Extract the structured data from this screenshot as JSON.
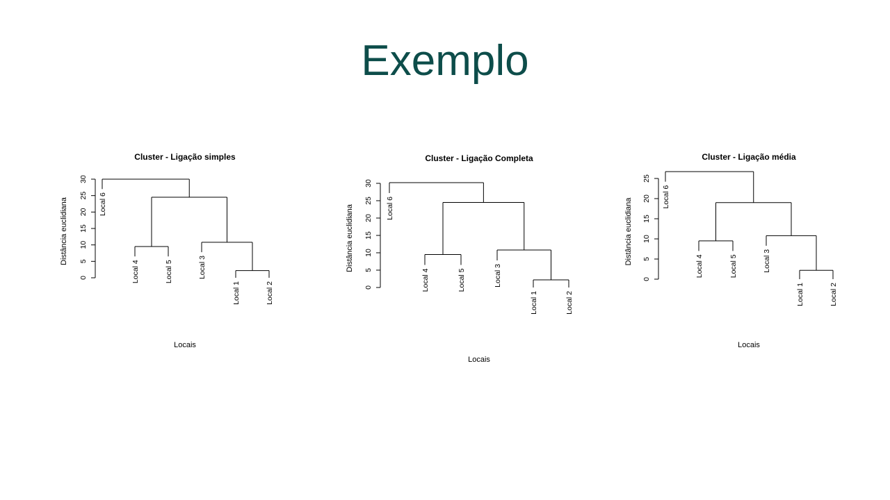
{
  "slide": {
    "title": "Exemplo"
  },
  "chart_data": [
    {
      "type": "dendrogram",
      "title": "Cluster - Ligação simples",
      "xlabel": "Locais",
      "ylabel": "Distância euclidiana",
      "ylim": [
        0,
        30
      ],
      "yticks": [
        0,
        5,
        10,
        15,
        20,
        25,
        30
      ],
      "leaves": [
        "Local 6",
        "Local 4",
        "Local 5",
        "Local 3",
        "Local 1",
        "Local 2"
      ],
      "merges": [
        {
          "a": "Local 1",
          "b": "Local 2",
          "height": 2.2
        },
        {
          "a": "Local 4",
          "b": "Local 5",
          "height": 9.5
        },
        {
          "a": "Local 3",
          "b": "m0",
          "height": 10.8
        },
        {
          "a": "m1",
          "b": "m2",
          "height": 24.5
        },
        {
          "a": "Local 6",
          "b": "m3",
          "height": 30.0
        }
      ]
    },
    {
      "type": "dendrogram",
      "title": "Cluster - Ligação Completa",
      "xlabel": "Locais",
      "ylabel": "Distância euclidiana",
      "ylim": [
        0,
        30
      ],
      "yticks": [
        0,
        5,
        10,
        15,
        20,
        25,
        30
      ],
      "leaves": [
        "Local 6",
        "Local 4",
        "Local 5",
        "Local 3",
        "Local 1",
        "Local 2"
      ],
      "merges": [
        {
          "a": "Local 1",
          "b": "Local 2",
          "height": 2.2
        },
        {
          "a": "Local 4",
          "b": "Local 5",
          "height": 9.5
        },
        {
          "a": "Local 3",
          "b": "m0",
          "height": 10.8
        },
        {
          "a": "m1",
          "b": "m2",
          "height": 24.5
        },
        {
          "a": "Local 6",
          "b": "m3",
          "height": 30.2
        }
      ]
    },
    {
      "type": "dendrogram",
      "title": "Cluster - Ligação média",
      "xlabel": "Locais",
      "ylabel": "Distância euclidiana",
      "ylim": [
        0,
        25
      ],
      "yticks": [
        0,
        5,
        10,
        15,
        20,
        25
      ],
      "leaves": [
        "Local 6",
        "Local 4",
        "Local 5",
        "Local 3",
        "Local 1",
        "Local 2"
      ],
      "merges": [
        {
          "a": "Local 1",
          "b": "Local 2",
          "height": 2.2
        },
        {
          "a": "Local 4",
          "b": "Local 5",
          "height": 9.5
        },
        {
          "a": "Local 3",
          "b": "m0",
          "height": 10.8
        },
        {
          "a": "m1",
          "b": "m2",
          "height": 19.0
        },
        {
          "a": "Local 6",
          "b": "m3",
          "height": 26.7
        }
      ]
    }
  ]
}
